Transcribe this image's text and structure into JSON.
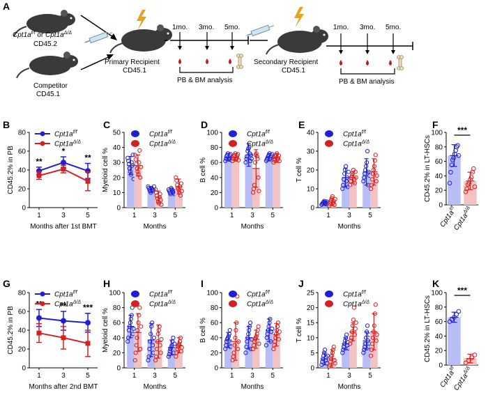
{
  "colors": {
    "wt": "#1f1fd6",
    "ko": "#d42020",
    "wt_bar": "#b9bdf5",
    "ko_bar": "#f3c2c2"
  },
  "panel_labels": [
    "A",
    "B",
    "C",
    "D",
    "E",
    "F",
    "G",
    "H",
    "I",
    "J",
    "K"
  ],
  "schematic": {
    "donor_line1_a": "Cpt1a",
    "donor_line1_b": "f/f",
    "donor_line1_c": " or ",
    "donor_line1_d": "Cpt1a",
    "donor_line1_e": "Δ/Δ",
    "donor_line2": "CD45.2",
    "competitor_line1": "Competitor",
    "competitor_line2": "CD45.1",
    "primary_line1": "Primary Recipient",
    "primary_line2": "CD45.1",
    "secondary_line1": "Secondary Recipient",
    "secondary_line2": "CD45.1",
    "timepoints": [
      "1mo.",
      "3mo.",
      "5mo."
    ],
    "analysis": "PB & BM analysis"
  },
  "legend": {
    "wt_base": "Cpt1a",
    "wt_sup": "f/f",
    "ko_base": "Cpt1a",
    "ko_sup": "Δ/Δ"
  },
  "chart_data": [
    {
      "panel": "B",
      "type": "line",
      "x": [
        1,
        3,
        5
      ],
      "xlabel": "Months after 1st  BMT",
      "ylabel": "CD45.2% in PB",
      "ylim": [
        0,
        80
      ],
      "yticks": [
        0,
        20,
        40,
        60,
        80
      ],
      "series": [
        {
          "name": "Cpt1a f/f",
          "values": [
            39,
            48,
            39
          ],
          "err": [
            4,
            6,
            8
          ]
        },
        {
          "name": "Cpt1a Δ/Δ",
          "values": [
            34,
            41,
            28
          ],
          "err": [
            4,
            4,
            10
          ]
        }
      ],
      "significance": [
        "**",
        "*",
        "**"
      ]
    },
    {
      "panel": "C",
      "type": "bar",
      "categories": [
        "1",
        "3",
        "5"
      ],
      "xlabel": "Months",
      "ylabel": "Myeloid cell %",
      "ylim": [
        0,
        50
      ],
      "yticks": [
        0,
        10,
        20,
        30,
        40,
        50
      ],
      "series": [
        {
          "name": "Cpt1a f/f",
          "values": [
            28,
            12,
            11
          ],
          "err": [
            6,
            2,
            2
          ],
          "points": [
            [
              33,
              31,
              29,
              26,
              24,
              22,
              30,
              28,
              35,
              19
            ],
            [
              14,
              13,
              12,
              11,
              10,
              13,
              12,
              11,
              12,
              14
            ],
            [
              12,
              11,
              10,
              9,
              13,
              12,
              11,
              10,
              11,
              9
            ]
          ]
        },
        {
          "name": "Cpt1a Δ/Δ",
          "values": [
            28,
            7,
            14
          ],
          "err": [
            7,
            4,
            5
          ],
          "points": [
            [
              35,
              32,
              29,
              26,
              24,
              22,
              30,
              38,
              20,
              27
            ],
            [
              12,
              10,
              8,
              6,
              4,
              3,
              7,
              9,
              5,
              2
            ],
            [
              20,
              18,
              15,
              13,
              12,
              10,
              14,
              8,
              16,
              11
            ]
          ]
        }
      ]
    },
    {
      "panel": "D",
      "type": "bar",
      "categories": [
        "1",
        "3",
        "5"
      ],
      "xlabel": "Months",
      "ylabel": "B cell %",
      "ylim": [
        0,
        100
      ],
      "yticks": [
        0,
        20,
        40,
        60,
        80,
        100
      ],
      "series": [
        {
          "name": "Cpt1a f/f",
          "values": [
            67,
            70,
            67
          ],
          "err": [
            5,
            15,
            5
          ],
          "points": [
            [
              62,
              65,
              68,
              70,
              72,
              64,
              66,
              69,
              71,
              63
            ],
            [
              60,
              65,
              68,
              75,
              78,
              80,
              72,
              62,
              70,
              65
            ],
            [
              62,
              64,
              66,
              68,
              70,
              72,
              65,
              67,
              69,
              71
            ]
          ]
        },
        {
          "name": "Cpt1a Δ/Δ",
          "values": [
            67,
            52,
            66
          ],
          "err": [
            5,
            25,
            6
          ],
          "points": [
            [
              62,
              65,
              68,
              70,
              72,
              64,
              66,
              69,
              71,
              63
            ],
            [
              20,
              25,
              30,
              60,
              70,
              72,
              68,
              65,
              40,
              22
            ],
            [
              60,
              63,
              65,
              68,
              70,
              72,
              64,
              66,
              69,
              62
            ]
          ]
        }
      ]
    },
    {
      "panel": "E",
      "type": "bar",
      "categories": [
        "1",
        "3",
        "5"
      ],
      "xlabel": "Months",
      "ylabel": "T cell %",
      "ylim": [
        0,
        40
      ],
      "yticks": [
        0,
        10,
        20,
        30,
        40
      ],
      "series": [
        {
          "name": "Cpt1a f/f",
          "values": [
            2.5,
            16,
            19
          ],
          "err": [
            1,
            5,
            7
          ],
          "points": [
            [
              1.5,
              2,
              2.5,
              3,
              3.5,
              2,
              2.8,
              1.8,
              3.2,
              2.4
            ],
            [
              10,
              12,
              15,
              18,
              20,
              22,
              14,
              16,
              11,
              19
            ],
            [
              14,
              16,
              18,
              20,
              22,
              24,
              30,
              12,
              19,
              17
            ]
          ]
        },
        {
          "name": "Cpt1a Δ/Δ",
          "values": [
            3,
            16,
            19
          ],
          "err": [
            2,
            3,
            7
          ],
          "points": [
            [
              1,
              2,
              3,
              4,
              5,
              6,
              2.5,
              3.5,
              1.5,
              4.5
            ],
            [
              12,
              14,
              16,
              17,
              18,
              20,
              15,
              13,
              19,
              16
            ],
            [
              10,
              12,
              15,
              18,
              20,
              22,
              25,
              28,
              14,
              17
            ]
          ]
        }
      ]
    },
    {
      "panel": "F",
      "type": "bar",
      "categories": [
        "Cpt1a f/f",
        "Cpt1a Δ/Δ"
      ],
      "ylabel": "CD45.2% in LT-HSCs",
      "ylim": [
        0,
        100
      ],
      "yticks": [
        0,
        20,
        40,
        60,
        80,
        100
      ],
      "values": [
        68,
        33
      ],
      "err": [
        15,
        12
      ],
      "points": [
        [
          30,
          45,
          55,
          62,
          65,
          70,
          75,
          80,
          82,
          68
        ],
        [
          18,
          22,
          28,
          30,
          35,
          38,
          45,
          50,
          25
        ]
      ],
      "significance": [
        "***"
      ]
    },
    {
      "panel": "G",
      "type": "line",
      "x": [
        1,
        3,
        5
      ],
      "xlabel": "Months after 2nd BMT",
      "ylabel": "CD45.2% in PB",
      "ylim": [
        0,
        80
      ],
      "yticks": [
        0,
        20,
        40,
        60,
        80
      ],
      "series": [
        {
          "name": "Cpt1a f/f",
          "values": [
            53,
            50,
            48
          ],
          "err": [
            9,
            10,
            10
          ]
        },
        {
          "name": "Cpt1a Δ/Δ",
          "values": [
            37,
            32,
            26
          ],
          "err": [
            10,
            12,
            14
          ]
        }
      ],
      "significance": [
        "**",
        "**",
        "***"
      ]
    },
    {
      "panel": "H",
      "type": "bar",
      "categories": [
        "1",
        "3",
        "5"
      ],
      "xlabel": "Months",
      "ylabel": "Myeloid cell %",
      "ylim": [
        0,
        100
      ],
      "yticks": [
        0,
        20,
        40,
        60,
        80,
        100
      ],
      "series": [
        {
          "name": "Cpt1a f/f",
          "values": [
            55,
            37,
            27
          ],
          "err": [
            15,
            22,
            10
          ],
          "points": [
            [
              35,
              40,
              50,
              55,
              60,
              65,
              70,
              80,
              45,
              52
            ],
            [
              10,
              15,
              25,
              35,
              45,
              55,
              60,
              30,
              20,
              40
            ],
            [
              15,
              18,
              22,
              25,
              28,
              30,
              35,
              40,
              20,
              32
            ]
          ]
        },
        {
          "name": "Cpt1a Δ/Δ",
          "values": [
            47,
            35,
            30
          ],
          "err": [
            25,
            22,
            10
          ],
          "points": [
            [
              10,
              20,
              30,
              40,
              50,
              60,
              70,
              80,
              25,
              55
            ],
            [
              10,
              15,
              25,
              35,
              45,
              50,
              55,
              30,
              20,
              38
            ],
            [
              15,
              20,
              25,
              28,
              30,
              32,
              35,
              40,
              22,
              27
            ]
          ]
        }
      ]
    },
    {
      "panel": "I",
      "type": "bar",
      "categories": [
        "1",
        "3",
        "5"
      ],
      "xlabel": "Months",
      "ylabel": "B cell %",
      "ylim": [
        0,
        100
      ],
      "yticks": [
        0,
        20,
        40,
        60,
        80,
        100
      ],
      "series": [
        {
          "name": "Cpt1a f/f",
          "values": [
            37,
            40,
            50
          ],
          "err": [
            10,
            15,
            15
          ],
          "points": [
            [
              25,
              30,
              35,
              38,
              40,
              42,
              45,
              50,
              28,
              33
            ],
            [
              20,
              28,
              35,
              40,
              45,
              50,
              55,
              60,
              25,
              38
            ],
            [
              30,
              40,
              45,
              50,
              55,
              60,
              65,
              35,
              48,
              52
            ]
          ]
        },
        {
          "name": "Cpt1a Δ/Δ",
          "values": [
            35,
            38,
            44
          ],
          "err": [
            25,
            12,
            15
          ],
          "points": [
            [
              10,
              15,
              20,
              30,
              40,
              50,
              60,
              95,
              25,
              35
            ],
            [
              25,
              30,
              35,
              38,
              40,
              42,
              45,
              50,
              55,
              32
            ],
            [
              25,
              30,
              35,
              40,
              45,
              50,
              55,
              60,
              38,
              48
            ]
          ]
        }
      ]
    },
    {
      "panel": "J",
      "type": "bar",
      "categories": [
        "1",
        "3",
        "5"
      ],
      "xlabel": "Months",
      "ylabel": "T cell %",
      "ylim": [
        0,
        25
      ],
      "yticks": [
        0,
        5,
        10,
        15,
        20,
        25
      ],
      "series": [
        {
          "name": "Cpt1a f/f",
          "values": [
            3,
            8,
            9
          ],
          "err": [
            2,
            2,
            3
          ],
          "points": [
            [
              1,
              2,
              3,
              4,
              5,
              6,
              2.5,
              3.5,
              1.5,
              4
            ],
            [
              5,
              6,
              7,
              8,
              9,
              10,
              11,
              7.5,
              8.5,
              6.5
            ],
            [
              5,
              6,
              7,
              8,
              10,
              12,
              14,
              9,
              7,
              11
            ]
          ]
        },
        {
          "name": "Cpt1a Δ/Δ",
          "values": [
            3,
            12,
            12
          ],
          "err": [
            3,
            3,
            6
          ],
          "points": [
            [
              0.5,
              1,
              2,
              3,
              4,
              5,
              6,
              7,
              2.5,
              1.5
            ],
            [
              8,
              9,
              10,
              12,
              14,
              16,
              20,
              11,
              13,
              15
            ],
            [
              4,
              6,
              8,
              10,
              12,
              14,
              18,
              21,
              9,
              11
            ]
          ]
        }
      ]
    },
    {
      "panel": "K",
      "type": "bar",
      "categories": [
        "Cpt1a f/f",
        "Cpt1a Δ/Δ"
      ],
      "ylabel": "CD45.2% in LT-HSCs",
      "ylim": [
        0,
        100
      ],
      "yticks": [
        0,
        20,
        40,
        60,
        80,
        100
      ],
      "values": [
        66,
        9
      ],
      "err": [
        7,
        6
      ],
      "points": [
        [
          60,
          63,
          66,
          70,
          74
        ],
        [
          3,
          6,
          10,
          14
        ]
      ],
      "significance": [
        "***"
      ]
    }
  ]
}
